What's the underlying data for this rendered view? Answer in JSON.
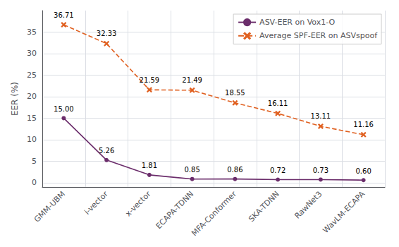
{
  "chart_data": {
    "type": "line",
    "categories": [
      "GMM-UBM",
      "i-vector",
      "x-vector",
      "ECAPA-TDNN",
      "MFA-Conformer",
      "SKA-TDNN",
      "RawNet3",
      "WavLM-ECAPA"
    ],
    "series": [
      {
        "name": "ASV-EER on Vox1-O",
        "color": "#6b2d6b",
        "marker": "circle",
        "line_style": "solid",
        "values": [
          15.0,
          5.26,
          1.81,
          0.85,
          0.86,
          0.72,
          0.73,
          0.6
        ],
        "value_labels": [
          "15.00",
          "5.26",
          "1.81",
          "0.85",
          "0.86",
          "0.72",
          "0.73",
          "0.60"
        ]
      },
      {
        "name": "Average SPF-EER on ASVspoof",
        "color": "#e06020",
        "marker": "x",
        "line_style": "dashed",
        "values": [
          36.71,
          32.33,
          21.59,
          21.49,
          18.55,
          16.11,
          13.11,
          11.16
        ],
        "value_labels": [
          "36.71",
          "32.33",
          "21.59",
          "21.49",
          "18.55",
          "16.11",
          "13.11",
          "11.16"
        ]
      }
    ],
    "ylabel": "EER (%)",
    "ylim": [
      -1,
      40
    ],
    "yticks": [
      0,
      5,
      10,
      15,
      20,
      25,
      30,
      35
    ],
    "grid": true,
    "legend": "upper right",
    "data_labels": true
  }
}
